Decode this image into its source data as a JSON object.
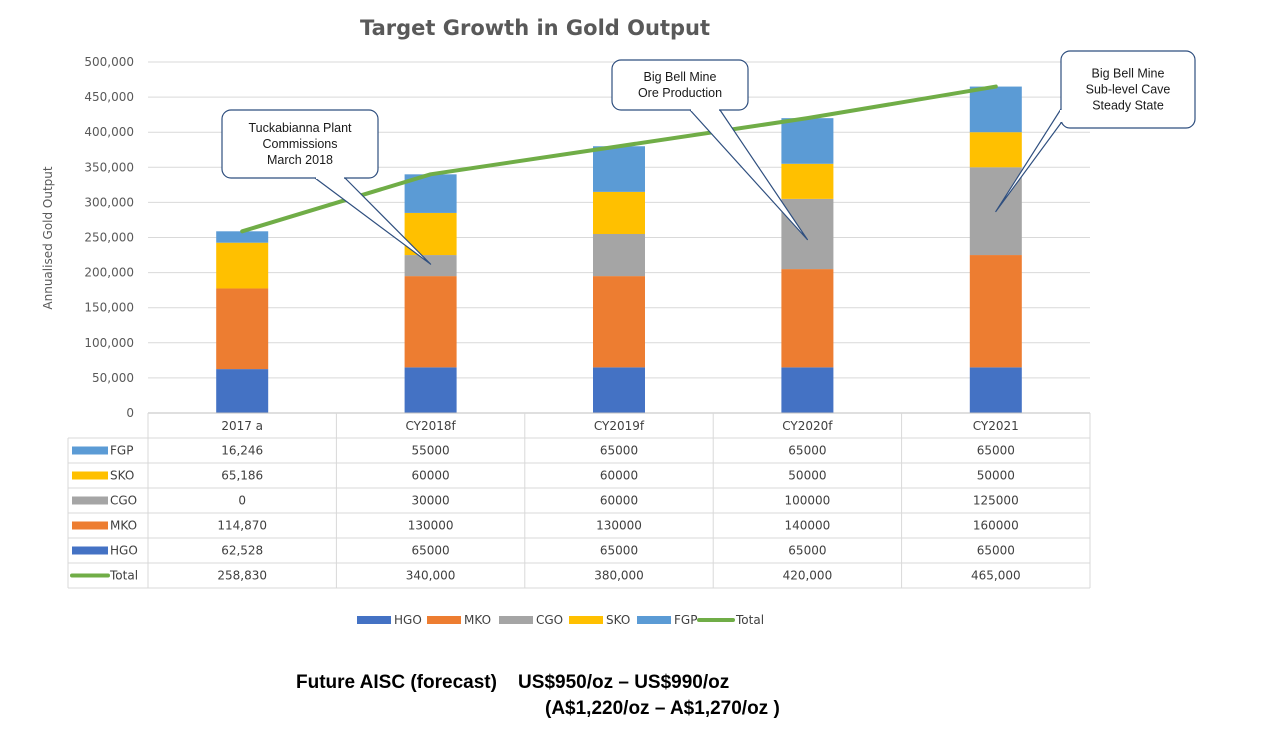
{
  "chart_data": {
    "type": "bar",
    "stacked": true,
    "title": "Target Growth in Gold Output",
    "ylabel": "Annualised Gold Output",
    "ylim": [
      0,
      500000
    ],
    "yticks": [
      "0",
      "50,000",
      "100,000",
      "150,000",
      "200,000",
      "250,000",
      "300,000",
      "350,000",
      "400,000",
      "450,000",
      "500,000"
    ],
    "categories": [
      "2017 a",
      "CY2018f",
      "CY2019f",
      "CY2020f",
      "CY2021"
    ],
    "series": [
      {
        "name": "HGO",
        "color": "#4472C4",
        "values": [
          62528,
          65000,
          65000,
          65000,
          65000
        ],
        "labels": [
          "62,528",
          "65000",
          "65000",
          "65000",
          "65000"
        ]
      },
      {
        "name": "MKO",
        "color": "#ED7D31",
        "values": [
          114870,
          130000,
          130000,
          140000,
          160000
        ],
        "labels": [
          "114,870",
          "130000",
          "130000",
          "140000",
          "160000"
        ]
      },
      {
        "name": "CGO",
        "color": "#A5A5A5",
        "values": [
          0,
          30000,
          60000,
          100000,
          125000
        ],
        "labels": [
          "0",
          "30000",
          "60000",
          "100000",
          "125000"
        ]
      },
      {
        "name": "SKO",
        "color": "#FFC000",
        "values": [
          65186,
          60000,
          60000,
          50000,
          50000
        ],
        "labels": [
          "65,186",
          "60000",
          "60000",
          "50000",
          "50000"
        ]
      },
      {
        "name": "FGP",
        "color": "#5B9BD5",
        "values": [
          16246,
          55000,
          65000,
          65000,
          65000
        ],
        "labels": [
          "16,246",
          "55000",
          "65000",
          "65000",
          "65000"
        ]
      }
    ],
    "total": {
      "name": "Total",
      "type": "line",
      "color": "#70AD47",
      "values": [
        258830,
        340000,
        380000,
        420000,
        465000
      ],
      "labels": [
        "258,830",
        "340,000",
        "380,000",
        "420,000",
        "465,000"
      ]
    },
    "table_row_order": [
      "FGP",
      "SKO",
      "CGO",
      "MKO",
      "HGO",
      "Total"
    ],
    "legend": {
      "placement": "bottom",
      "order": [
        "HGO",
        "MKO",
        "CGO",
        "SKO",
        "FGP",
        "Total"
      ]
    },
    "grid": true,
    "annotations": [
      {
        "lines": [
          "Tuckabianna Plant",
          "Commissions",
          "March 2018"
        ],
        "target_category": "CY2018f",
        "target_value": 212000
      },
      {
        "lines": [
          "Big Bell Mine",
          "Ore Production"
        ],
        "target_category": "CY2020f",
        "target_value": 247000
      },
      {
        "lines": [
          "Big Bell Mine",
          "Sub-level Cave",
          "Steady State"
        ],
        "target_category": "CY2021",
        "target_value": 287000
      }
    ]
  },
  "footer": {
    "line1": "Future AISC (forecast)    US$950/oz – US$990/oz",
    "line2": "(A$1,220/oz – A$1,270/oz )"
  }
}
